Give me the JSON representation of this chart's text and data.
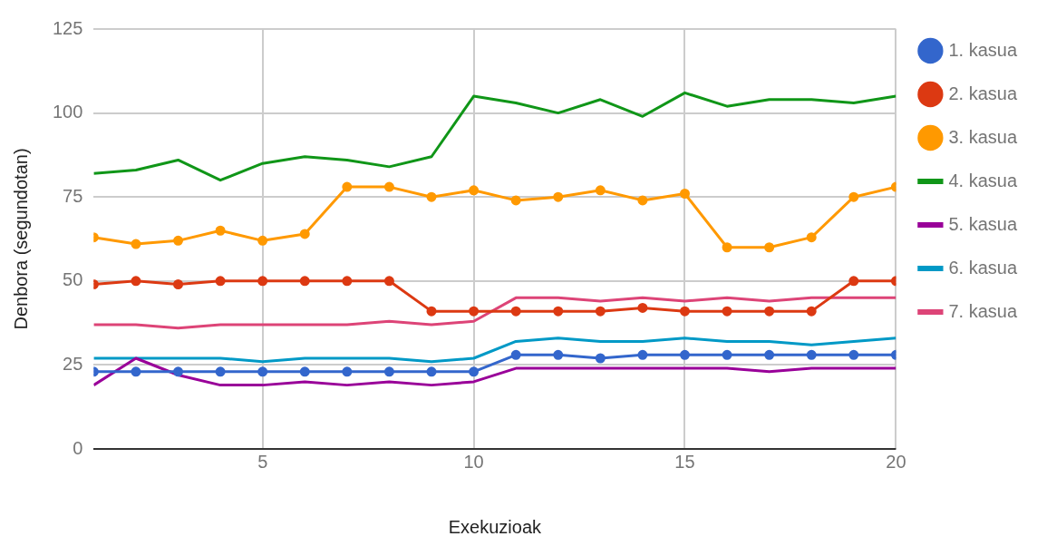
{
  "chart_data": {
    "type": "line",
    "xlabel": "Exekuzioak",
    "ylabel": "Denbora (segundotan)",
    "x": [
      1,
      2,
      3,
      4,
      5,
      6,
      7,
      8,
      9,
      10,
      11,
      12,
      13,
      14,
      15,
      16,
      17,
      18,
      19,
      20
    ],
    "xlim": [
      1,
      20
    ],
    "xticks": [
      5,
      10,
      15,
      20
    ],
    "ylim": [
      0,
      125
    ],
    "yticks": [
      0,
      25,
      50,
      75,
      100,
      125
    ],
    "grid": true,
    "legend": "right",
    "line_style": "solid",
    "series": [
      {
        "name": "1. kasua",
        "color": "#3366cc",
        "marker": "circle",
        "values": [
          23,
          23,
          23,
          23,
          23,
          23,
          23,
          23,
          23,
          23,
          28,
          28,
          27,
          28,
          28,
          28,
          28,
          28,
          28,
          28
        ]
      },
      {
        "name": "2. kasua",
        "color": "#dc3912",
        "marker": "circle",
        "values": [
          49,
          50,
          49,
          50,
          50,
          50,
          50,
          50,
          41,
          41,
          41,
          41,
          41,
          42,
          41,
          41,
          41,
          41,
          50,
          50
        ]
      },
      {
        "name": "3. kasua",
        "color": "#ff9900",
        "marker": "circle",
        "values": [
          63,
          61,
          62,
          65,
          62,
          64,
          78,
          78,
          75,
          77,
          74,
          75,
          77,
          74,
          76,
          60,
          60,
          63,
          75,
          78
        ]
      },
      {
        "name": "4. kasua",
        "color": "#109618",
        "marker": "none",
        "values": [
          82,
          83,
          86,
          80,
          85,
          87,
          86,
          84,
          87,
          105,
          103,
          100,
          104,
          99,
          106,
          102,
          104,
          104,
          103,
          105
        ]
      },
      {
        "name": "5. kasua",
        "color": "#990099",
        "marker": "none",
        "values": [
          19,
          27,
          22,
          19,
          19,
          20,
          19,
          20,
          19,
          20,
          24,
          24,
          24,
          24,
          24,
          24,
          23,
          24,
          24,
          24
        ]
      },
      {
        "name": "6. kasua",
        "color": "#0099c6",
        "marker": "none",
        "values": [
          27,
          27,
          27,
          27,
          26,
          27,
          27,
          27,
          26,
          27,
          32,
          33,
          32,
          32,
          33,
          32,
          32,
          31,
          32,
          33
        ]
      },
      {
        "name": "7. kasua",
        "color": "#dd4477",
        "marker": "none",
        "values": [
          37,
          37,
          36,
          37,
          37,
          37,
          37,
          38,
          37,
          38,
          45,
          45,
          44,
          45,
          44,
          45,
          44,
          45,
          45,
          45
        ]
      }
    ]
  }
}
